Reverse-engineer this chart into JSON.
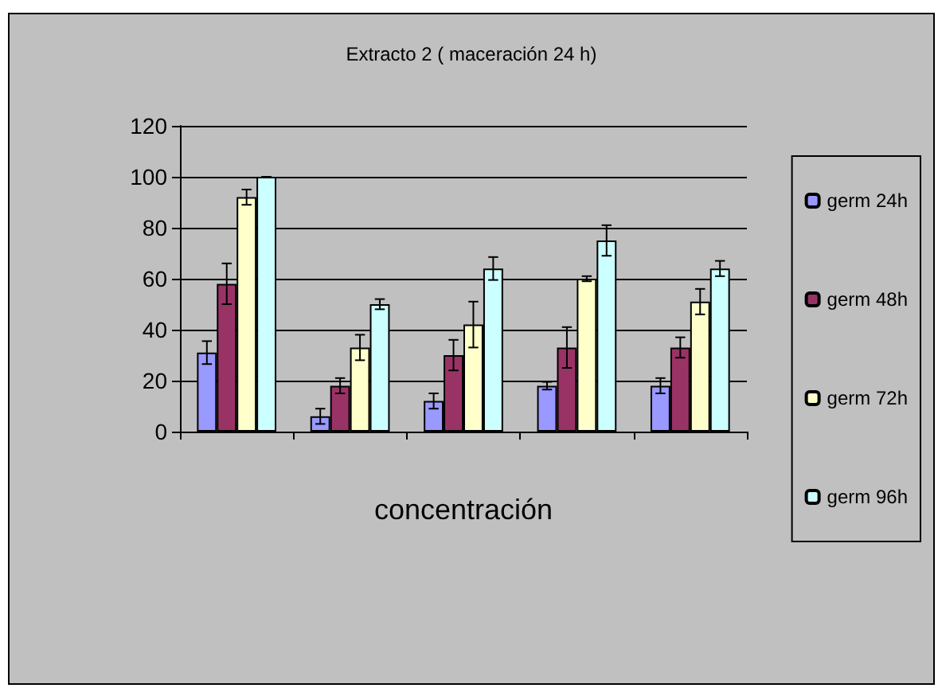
{
  "chart_data": {
    "type": "bar",
    "title": "Extracto 2 ( maceración 24 h)",
    "xlabel": "concentración",
    "categories": [
      null,
      null,
      null,
      null,
      null
    ],
    "series": [
      {
        "name": "germ 24h",
        "color": "#9999ff",
        "values": [
          31,
          6,
          12,
          18,
          18
        ],
        "errors": [
          4.5,
          3,
          3,
          1.5,
          3
        ]
      },
      {
        "name": "germ 48h",
        "color": "#993366",
        "values": [
          58,
          18,
          30,
          33,
          33
        ],
        "errors": [
          8,
          3,
          6,
          8,
          4
        ]
      },
      {
        "name": "germ 72h",
        "color": "#ffffcc",
        "values": [
          92,
          33,
          42,
          60,
          51
        ],
        "errors": [
          3,
          5,
          9,
          1,
          5
        ]
      },
      {
        "name": "germ 96h",
        "color": "#ccffff",
        "values": [
          100,
          50,
          64,
          75,
          64
        ],
        "errors": [
          0,
          2,
          4.5,
          6,
          3
        ]
      }
    ],
    "ylim": [
      0,
      120
    ],
    "yticks": [
      0,
      20,
      40,
      60,
      80,
      100,
      120
    ],
    "grid": "y",
    "legend": "right"
  }
}
